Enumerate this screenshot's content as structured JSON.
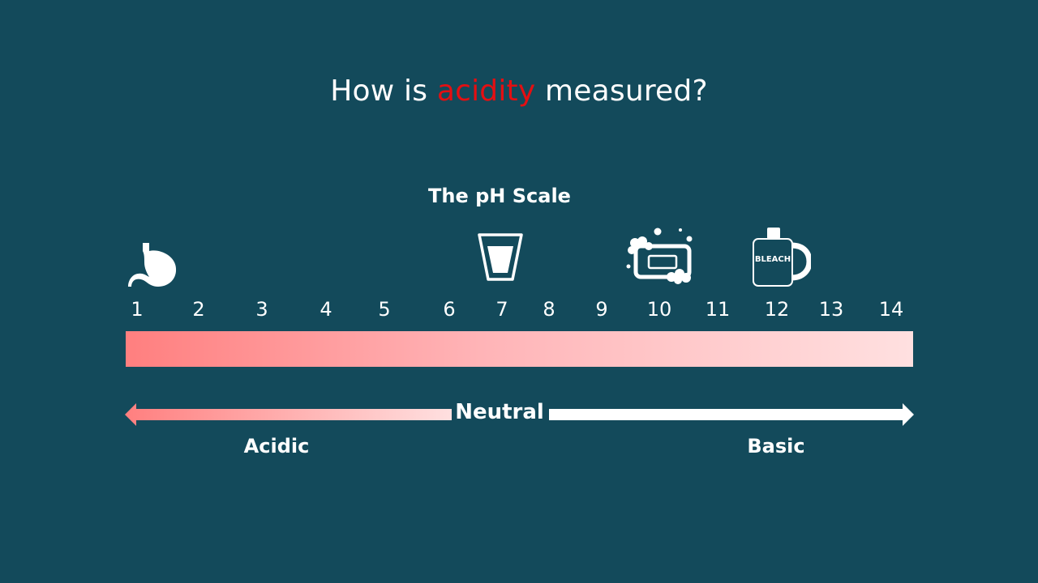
{
  "title": {
    "prefix": "How is ",
    "highlight": "acidity",
    "suffix": " measured?"
  },
  "scale_title": "The pH Scale",
  "ticks": [
    "1",
    "2",
    "3",
    "4",
    "5",
    "6",
    "7",
    "8",
    "9",
    "10",
    "11",
    "12",
    "13",
    "14"
  ],
  "icons": {
    "stomach": "stomach-icon",
    "water_glass": "water-glass-icon",
    "soap": "soap-icon",
    "bleach": "bleach-icon",
    "bleach_label": "BLEACH"
  },
  "labels": {
    "neutral": "Neutral",
    "acidic": "Acidic",
    "basic": "Basic"
  },
  "colors": {
    "background": "#134a5b",
    "accent": "#e40f12",
    "acid_strong": "#ff7f7f",
    "base_light": "#ffe0e0"
  }
}
